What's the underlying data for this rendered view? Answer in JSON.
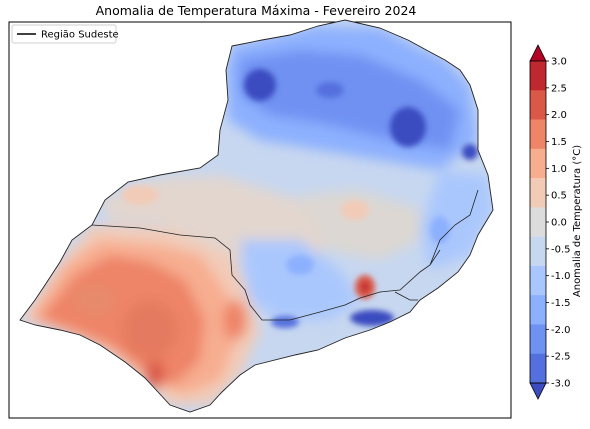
{
  "title": "Anomalia de Temperatura Máxima - Fevereiro 2024",
  "legend": {
    "label": "Região Sudeste",
    "line_color": "#000000"
  },
  "colorbar": {
    "label": "Anomalia de Temperatura (°C)",
    "ticks": [
      "-3.0",
      "-2.5",
      "-2.0",
      "-1.5",
      "-1.0",
      "-0.5",
      "0.0",
      "0.5",
      "1.0",
      "1.5",
      "2.0",
      "2.5",
      "3.0"
    ],
    "colors": [
      "#3b4cc0",
      "#5470de",
      "#6f91f2",
      "#8db0fe",
      "#aac7fd",
      "#c7d7f0",
      "#dddcdc",
      "#f2cbb7",
      "#f7ad90",
      "#ee8468",
      "#d95847",
      "#c0282f",
      "#b40426"
    ]
  },
  "map": {
    "region": "Sudeste",
    "hotspots": [
      {
        "name": "west",
        "anomaly": 1.5
      },
      {
        "name": "southwest",
        "anomaly": 2.0
      },
      {
        "name": "center-south",
        "anomaly": 2.5
      }
    ],
    "coldspots": [
      {
        "name": "north",
        "anomaly": -2.5
      },
      {
        "name": "northeast",
        "anomaly": -2.5
      },
      {
        "name": "coast",
        "anomaly": -2.5
      }
    ]
  }
}
